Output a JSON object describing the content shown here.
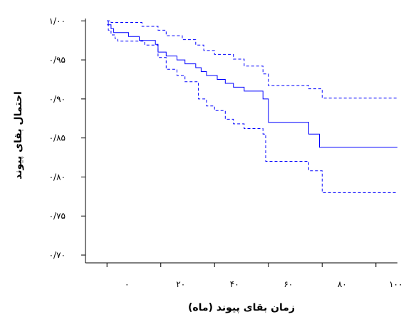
{
  "chart_data": {
    "type": "line",
    "xlabel": "زمان بقای پیوند (ماه)",
    "ylabel": "احتمال بقای پیوند",
    "xlim": [
      -8,
      108
    ],
    "ylim": [
      0.69,
      1.003
    ],
    "x_ticks": [
      0,
      20,
      40,
      60,
      80,
      100
    ],
    "x_tick_labels": [
      "۰",
      "۲۰",
      "۴۰",
      "۶۰",
      "۸۰",
      "۱۰۰"
    ],
    "y_ticks": [
      1.0,
      0.95,
      0.9,
      0.85,
      0.8,
      0.75,
      0.7
    ],
    "y_tick_labels": [
      "۱/۰۰",
      "۰/۹۵",
      "۰/۹۰",
      "۰/۸۵",
      "۰/۸۰",
      "۰/۷۵",
      "۰/۷۰"
    ],
    "grid": false,
    "colors": {
      "series": "#0000ff",
      "axis": "#000000"
    },
    "series": [
      {
        "style": "solid",
        "steps": [
          [
            0,
            1.0
          ],
          [
            0.5,
            0.995
          ],
          [
            1.5,
            0.99
          ],
          [
            2.5,
            0.985
          ],
          [
            8,
            0.98
          ],
          [
            12,
            0.975
          ],
          [
            18,
            0.97
          ],
          [
            19,
            0.96
          ],
          [
            22,
            0.955
          ],
          [
            26,
            0.95
          ],
          [
            29,
            0.945
          ],
          [
            33,
            0.94
          ],
          [
            35,
            0.935
          ],
          [
            37,
            0.93
          ],
          [
            41,
            0.925
          ],
          [
            44,
            0.92
          ],
          [
            47,
            0.915
          ],
          [
            51,
            0.91
          ],
          [
            58,
            0.9
          ],
          [
            60,
            0.87
          ],
          [
            75,
            0.855
          ],
          [
            79,
            0.838
          ],
          [
            108,
            0.838
          ]
        ]
      },
      {
        "style": "dashed",
        "steps": [
          [
            0,
            1.0
          ],
          [
            1.5,
            0.998
          ],
          [
            13,
            0.993
          ],
          [
            19,
            0.988
          ],
          [
            22,
            0.981
          ],
          [
            28,
            0.976
          ],
          [
            33,
            0.969
          ],
          [
            36,
            0.962
          ],
          [
            40,
            0.957
          ],
          [
            47,
            0.951
          ],
          [
            51,
            0.942
          ],
          [
            58,
            0.932
          ],
          [
            60,
            0.917
          ],
          [
            75,
            0.913
          ],
          [
            80,
            0.901
          ],
          [
            108,
            0.901
          ]
        ]
      },
      {
        "style": "dashed",
        "steps": [
          [
            0,
            0.995
          ],
          [
            0.5,
            0.988
          ],
          [
            1.5,
            0.982
          ],
          [
            3,
            0.977
          ],
          [
            4,
            0.974
          ],
          [
            14,
            0.969
          ],
          [
            19,
            0.953
          ],
          [
            22,
            0.938
          ],
          [
            26,
            0.93
          ],
          [
            29,
            0.922
          ],
          [
            34,
            0.9
          ],
          [
            37,
            0.891
          ],
          [
            40,
            0.885
          ],
          [
            44,
            0.874
          ],
          [
            47,
            0.868
          ],
          [
            51,
            0.862
          ],
          [
            58,
            0.855
          ],
          [
            59,
            0.82
          ],
          [
            75,
            0.808
          ],
          [
            80,
            0.78
          ],
          [
            108,
            0.78
          ]
        ]
      }
    ]
  }
}
